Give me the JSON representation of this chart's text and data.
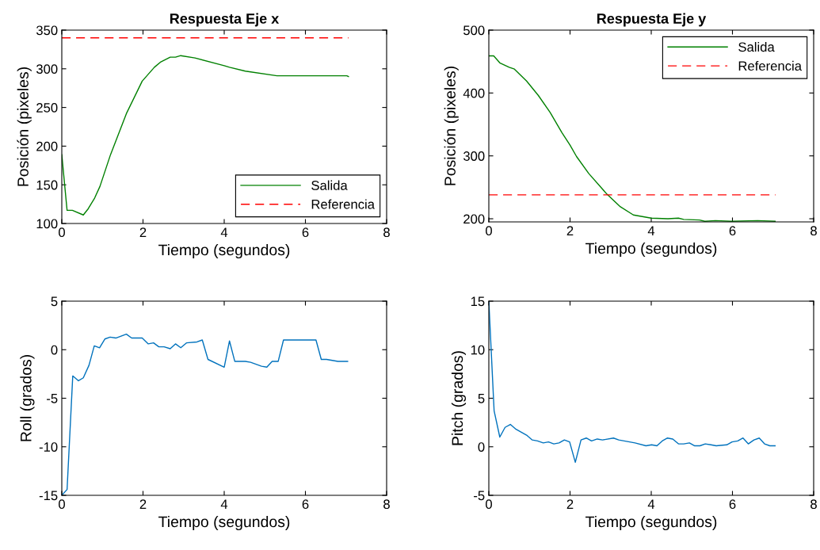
{
  "chart_data": [
    {
      "type": "line",
      "title": "Respuesta Eje x",
      "xlabel": "Tiempo (segundos)",
      "ylabel": "Posición (pixeles)",
      "xlim": [
        0,
        8
      ],
      "xticks": [
        0,
        2,
        4,
        6,
        8
      ],
      "ylim": [
        100,
        350
      ],
      "yticks": [
        100,
        150,
        200,
        250,
        300,
        350
      ],
      "legend": "bottom right",
      "series": [
        {
          "name": "Salida",
          "color": "#008000",
          "x": [
            0,
            0.13,
            0.26,
            0.53,
            0.65,
            0.81,
            0.94,
            1.2,
            1.59,
            1.98,
            2.28,
            2.44,
            2.67,
            2.8,
            2.93,
            3.28,
            4.0,
            4.13,
            4.52,
            5.3,
            7.02,
            7.06
          ],
          "values": [
            189,
            117,
            117,
            111,
            119,
            133,
            148,
            189,
            242,
            284,
            302,
            309,
            315,
            315,
            317,
            314,
            304,
            302,
            297,
            291,
            291,
            290
          ]
        },
        {
          "name": "Referencia",
          "color": "#ff0000",
          "line_style": "dashed",
          "x": [
            0,
            7.06
          ],
          "values": [
            340,
            340
          ]
        }
      ]
    },
    {
      "type": "line",
      "title": "Respuesta Eje y",
      "xlabel": "Tiempo (segundos)",
      "ylabel": "Posición (pixeles)",
      "xlim": [
        0,
        8
      ],
      "xticks": [
        0,
        2,
        4,
        6,
        8
      ],
      "ylim": [
        195,
        500
      ],
      "yticks": [
        200,
        300,
        400,
        500
      ],
      "legend": "top right",
      "series": [
        {
          "name": "Salida",
          "color": "#008000",
          "x": [
            0,
            0.12,
            0.27,
            0.5,
            0.63,
            0.93,
            1.22,
            1.51,
            1.8,
            2.0,
            2.16,
            2.46,
            2.91,
            3.24,
            3.56,
            4.0,
            4.41,
            4.67,
            4.8,
            5.19,
            5.32,
            5.58,
            5.97,
            6.62,
            7.05
          ],
          "values": [
            459,
            459,
            448,
            441,
            438,
            419,
            396,
            369,
            337,
            317,
            299,
            272,
            239,
            219,
            206,
            201,
            200,
            201,
            199,
            198,
            196,
            197,
            196,
            197,
            196
          ]
        },
        {
          "name": "Referencia",
          "color": "#ff0000",
          "line_style": "dashed",
          "x": [
            0,
            7.06
          ],
          "values": [
            238,
            238
          ]
        }
      ]
    },
    {
      "type": "line",
      "xlabel": "Tiempo (segundos)",
      "ylabel": "Roll (grados)",
      "xlim": [
        0,
        8
      ],
      "xticks": [
        0,
        2,
        4,
        6,
        8
      ],
      "ylim": [
        -15,
        5
      ],
      "yticks": [
        -15,
        -10,
        -5,
        0,
        5
      ],
      "series": [
        {
          "color": "#0072bd",
          "x": [
            0,
            0.13,
            0.27,
            0.41,
            0.53,
            0.67,
            0.8,
            0.93,
            1.06,
            1.19,
            1.33,
            1.46,
            1.59,
            1.72,
            1.98,
            2.13,
            2.26,
            2.39,
            2.52,
            2.67,
            2.8,
            2.93,
            3.07,
            3.33,
            3.46,
            3.6,
            4.0,
            4.13,
            4.26,
            4.52,
            4.65,
            4.92,
            5.05,
            5.18,
            5.33,
            5.46,
            6.26,
            6.39,
            6.52,
            6.8,
            7.04
          ],
          "values": [
            -15,
            -14.4,
            -2.7,
            -3.2,
            -2.9,
            -1.6,
            0.4,
            0.2,
            1.1,
            1.3,
            1.2,
            1.4,
            1.6,
            1.2,
            1.2,
            0.6,
            0.7,
            0.3,
            0.3,
            0.1,
            0.6,
            0.2,
            0.7,
            0.8,
            1.0,
            -1.0,
            -1.8,
            0.9,
            -1.2,
            -1.2,
            -1.3,
            -1.7,
            -1.8,
            -1.2,
            -1.2,
            1.0,
            1.0,
            -1.0,
            -1.0,
            -1.2,
            -1.2
          ]
        }
      ]
    },
    {
      "type": "line",
      "xlabel": "Tiempo (segundos)",
      "ylabel": "Pitch (grados)",
      "xlim": [
        0,
        8
      ],
      "xticks": [
        0,
        2,
        4,
        6,
        8
      ],
      "ylim": [
        -5,
        15
      ],
      "yticks": [
        -5,
        0,
        5,
        10,
        15
      ],
      "series": [
        {
          "color": "#0072bd",
          "x": [
            0,
            0.13,
            0.27,
            0.4,
            0.53,
            0.67,
            0.8,
            0.93,
            1.07,
            1.2,
            1.34,
            1.47,
            1.6,
            1.73,
            1.86,
            1.99,
            2.13,
            2.27,
            2.4,
            2.53,
            2.67,
            2.8,
            3.07,
            3.2,
            3.6,
            3.87,
            4.01,
            4.14,
            4.27,
            4.4,
            4.53,
            4.67,
            4.8,
            4.94,
            5.07,
            5.2,
            5.33,
            5.47,
            5.6,
            5.86,
            5.99,
            6.13,
            6.26,
            6.39,
            6.53,
            6.66,
            6.79,
            6.92,
            7.05
          ],
          "values": [
            15,
            3.7,
            1.0,
            2.0,
            2.3,
            1.8,
            1.5,
            1.2,
            0.7,
            0.6,
            0.4,
            0.5,
            0.3,
            0.4,
            0.7,
            0.5,
            -1.6,
            0.7,
            0.9,
            0.6,
            0.8,
            0.7,
            0.9,
            0.7,
            0.4,
            0.1,
            0.2,
            0.1,
            0.6,
            0.9,
            0.8,
            0.3,
            0.3,
            0.4,
            0.1,
            0.1,
            0.3,
            0.2,
            0.1,
            0.2,
            0.5,
            0.6,
            0.9,
            0.3,
            0.7,
            0.9,
            0.3,
            0.1,
            0.1
          ]
        }
      ]
    }
  ]
}
